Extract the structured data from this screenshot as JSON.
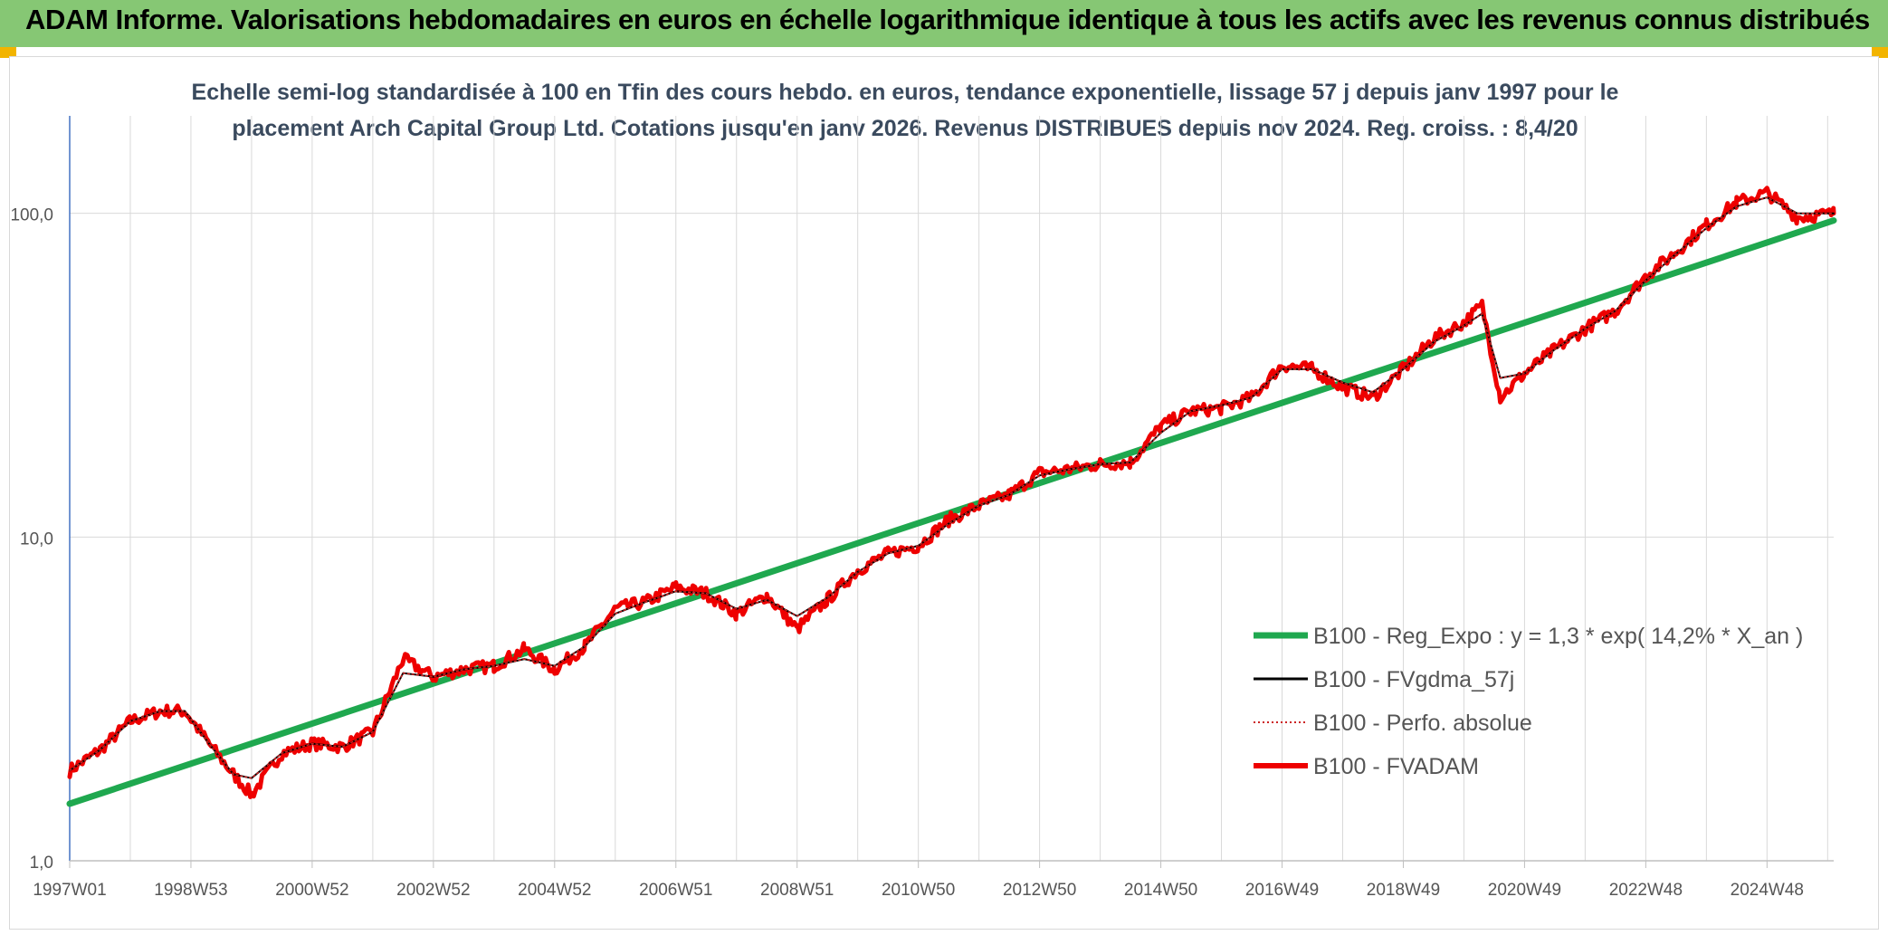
{
  "header": {
    "title": "ADAM Informe. Valorisations hebdomadaires en euros en échelle logarithmique identique à tous les actifs avec les revenus connus distribués",
    "accent_color": "#86c774"
  },
  "chart_data": {
    "type": "line",
    "title_line1": "Echelle semi-log standardisée à 100 en Tfin des cours hebdo. en euros, tendance exponentielle, lissage 57 j depuis janv 1997 pour le",
    "title_line2": "placement Arch Capital Group Ltd. Cotations jusqu'en janv 2026. Revenus DISTRIBUES depuis nov 2024. Reg. croiss. : 8,4/20",
    "yscale": "log",
    "ylim": [
      1,
      200
    ],
    "xlim": [
      1997.0,
      2026.1
    ],
    "y_ticks": [
      {
        "value": 1,
        "label": "1,0"
      },
      {
        "value": 10,
        "label": "10,0"
      },
      {
        "value": 100,
        "label": "100,0"
      }
    ],
    "x_ticks": [
      {
        "value": 1997.0,
        "label": "1997W01"
      },
      {
        "value": 1999.0,
        "label": "1998W53"
      },
      {
        "value": 2001.0,
        "label": "2000W52"
      },
      {
        "value": 2003.0,
        "label": "2002W52"
      },
      {
        "value": 2005.0,
        "label": "2004W52"
      },
      {
        "value": 2007.0,
        "label": "2006W51"
      },
      {
        "value": 2009.0,
        "label": "2008W51"
      },
      {
        "value": 2011.0,
        "label": "2010W50"
      },
      {
        "value": 2013.0,
        "label": "2012W50"
      },
      {
        "value": 2015.0,
        "label": "2014W50"
      },
      {
        "value": 2017.0,
        "label": "2016W49"
      },
      {
        "value": 2019.0,
        "label": "2018W49"
      },
      {
        "value": 2021.0,
        "label": "2020W49"
      },
      {
        "value": 2023.0,
        "label": "2022W48"
      },
      {
        "value": 2025.0,
        "label": "2024W48"
      }
    ],
    "grid": true,
    "legend_position": "bottom-right",
    "series": [
      {
        "name": "B100 - Reg_Expo : y = 1,3 * exp( 14,2% *  X_an )",
        "color": "#1fa84f",
        "style": "thick",
        "x": [
          1997.0,
          2026.1
        ],
        "y": [
          1.5,
          95
        ]
      },
      {
        "name": "B100 - FVgdma_57j",
        "color": "#000000",
        "style": "thin",
        "x": [
          1997.0,
          1997.5,
          1998.0,
          1998.5,
          1998.9,
          1999.3,
          1999.7,
          2000.0,
          2000.5,
          2001.0,
          2001.5,
          2002.0,
          2002.5,
          2003.0,
          2003.5,
          2004.0,
          2004.5,
          2005.0,
          2005.5,
          2006.0,
          2006.5,
          2007.0,
          2007.5,
          2008.0,
          2008.5,
          2009.0,
          2009.5,
          2010.0,
          2010.5,
          2011.0,
          2011.5,
          2012.0,
          2012.5,
          2013.0,
          2013.5,
          2014.0,
          2014.5,
          2015.0,
          2015.5,
          2016.0,
          2016.5,
          2017.0,
          2017.5,
          2018.0,
          2018.5,
          2019.0,
          2019.5,
          2020.0,
          2020.3,
          2020.6,
          2021.0,
          2021.5,
          2022.0,
          2022.5,
          2023.0,
          2023.5,
          2024.0,
          2024.5,
          2025.0,
          2025.5,
          2026.1
        ],
        "y": [
          1.9,
          2.2,
          2.7,
          2.9,
          2.9,
          2.3,
          1.85,
          1.8,
          2.15,
          2.3,
          2.25,
          2.5,
          3.8,
          3.7,
          3.9,
          4.0,
          4.2,
          4.0,
          4.6,
          5.8,
          6.3,
          6.8,
          6.7,
          6.0,
          6.4,
          5.7,
          6.5,
          7.8,
          8.9,
          9.4,
          11.0,
          12.5,
          13.5,
          15.5,
          16.2,
          16.8,
          17.0,
          21.0,
          24.5,
          25.5,
          27.0,
          33.0,
          33.0,
          30.0,
          28.0,
          33.0,
          40.0,
          45.0,
          49.0,
          31.0,
          32.0,
          38.0,
          44.0,
          50.0,
          62.0,
          75.0,
          90.0,
          105.0,
          112.0,
          100.0,
          100.0
        ]
      },
      {
        "name": "B100 - Perfo. absolue",
        "color": "#cc2222",
        "style": "dotted",
        "x": [
          1997.0,
          1997.5,
          1998.0,
          1998.5,
          1998.9,
          1999.3,
          1999.7,
          2000.0,
          2000.5,
          2001.0,
          2001.5,
          2002.0,
          2002.5,
          2003.0,
          2003.5,
          2004.0,
          2004.5,
          2005.0,
          2005.5,
          2006.0,
          2006.5,
          2007.0,
          2007.5,
          2008.0,
          2008.5,
          2009.0,
          2009.5,
          2010.0,
          2010.5,
          2011.0,
          2011.5,
          2012.0,
          2012.5,
          2013.0,
          2013.5,
          2014.0,
          2014.5,
          2015.0,
          2015.5,
          2016.0,
          2016.5,
          2017.0,
          2017.5,
          2018.0,
          2018.5,
          2019.0,
          2019.5,
          2020.0,
          2020.3,
          2020.6,
          2021.0,
          2021.5,
          2022.0,
          2022.5,
          2023.0,
          2023.5,
          2024.0,
          2024.5,
          2025.0,
          2025.5,
          2026.1
        ],
        "y": [
          1.9,
          2.2,
          2.7,
          2.9,
          2.9,
          2.3,
          1.85,
          1.8,
          2.15,
          2.3,
          2.25,
          2.5,
          3.8,
          3.7,
          3.9,
          4.0,
          4.2,
          4.0,
          4.6,
          5.8,
          6.3,
          6.8,
          6.7,
          6.0,
          6.4,
          5.7,
          6.5,
          7.8,
          8.9,
          9.4,
          11.0,
          12.5,
          13.5,
          15.5,
          16.2,
          16.8,
          17.0,
          21.0,
          24.5,
          25.5,
          27.0,
          33.0,
          33.0,
          30.0,
          28.0,
          33.0,
          40.0,
          45.0,
          49.0,
          31.0,
          32.0,
          38.0,
          44.0,
          50.0,
          62.0,
          75.0,
          90.0,
          105.0,
          112.0,
          100.0,
          100.0
        ]
      },
      {
        "name": "B100 - FVADAM",
        "color": "#ee0000",
        "style": "thick-noisy",
        "x": [
          1997.0,
          1997.5,
          1998.0,
          1998.5,
          1998.9,
          1999.3,
          1999.7,
          2000.0,
          2000.5,
          2001.0,
          2001.5,
          2002.0,
          2002.5,
          2003.0,
          2003.5,
          2004.0,
          2004.5,
          2005.0,
          2005.5,
          2006.0,
          2006.5,
          2007.0,
          2007.5,
          2008.0,
          2008.5,
          2009.0,
          2009.5,
          2010.0,
          2010.5,
          2011.0,
          2011.5,
          2012.0,
          2012.5,
          2013.0,
          2013.5,
          2014.0,
          2014.5,
          2015.0,
          2015.5,
          2016.0,
          2016.5,
          2017.0,
          2017.5,
          2018.0,
          2018.5,
          2019.0,
          2019.5,
          2020.0,
          2020.3,
          2020.6,
          2021.0,
          2021.5,
          2022.0,
          2022.5,
          2023.0,
          2023.5,
          2024.0,
          2024.5,
          2025.0,
          2025.5,
          2026.1
        ],
        "y": [
          1.9,
          2.2,
          2.7,
          2.9,
          2.9,
          2.3,
          1.85,
          1.6,
          2.15,
          2.3,
          2.25,
          2.5,
          4.2,
          3.7,
          3.9,
          4.0,
          4.5,
          3.9,
          4.6,
          6.0,
          6.3,
          7.0,
          6.7,
          5.8,
          6.6,
          5.2,
          6.4,
          7.9,
          8.9,
          9.4,
          11.3,
          12.5,
          13.5,
          15.8,
          16.2,
          16.8,
          17.0,
          22.0,
          24.5,
          25.0,
          27.0,
          34.0,
          33.0,
          29.0,
          27.0,
          33.0,
          41.0,
          46.0,
          52.0,
          27.0,
          32.0,
          38.0,
          44.0,
          50.0,
          64.0,
          76.0,
          92.0,
          108.0,
          116.0,
          97.0,
          100.0
        ]
      }
    ]
  }
}
